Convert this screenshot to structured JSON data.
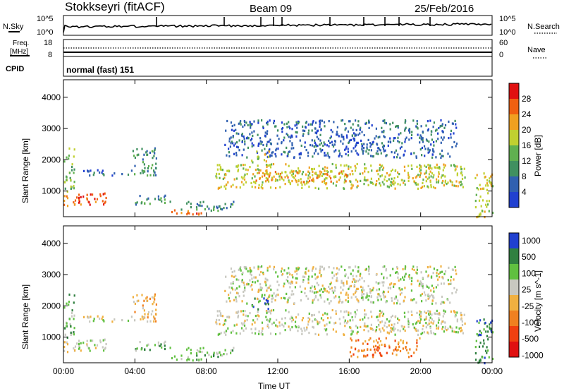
{
  "header": {
    "station": "Stokkseyri (fitACF)",
    "beam": "Beam 09",
    "date": "25/Feb/2016"
  },
  "nsky_panel": {
    "left_label": "N.Sky",
    "right_label": "N.Search",
    "left_ticks": [
      "10^5",
      "10^0"
    ],
    "right_ticks": [
      "10^5",
      "10^0"
    ]
  },
  "freq_panel": {
    "label_line1": "Freq.",
    "label_line2": "[MHz]",
    "right_label": "Nave",
    "left_ticks": [
      "18",
      "8"
    ],
    "right_ticks": [
      "60",
      "0"
    ]
  },
  "cpid": {
    "label": "CPID",
    "mode": "normal (fast) 151"
  },
  "colors": {
    "power": [
      "#2040d0",
      "#3060b0",
      "#409060",
      "#60b050",
      "#c0d030",
      "#f0a020",
      "#f06010",
      "#e01010"
    ],
    "velocity": [
      "#e01010",
      "#f04010",
      "#f08020",
      "#f0b040",
      "#c8c8c0",
      "#60c040",
      "#308040",
      "#2040d0"
    ]
  },
  "chart_data": [
    {
      "type": "heatmap",
      "name": "power",
      "ylabel": "Slant Range [km]",
      "xlabel": "Time UT",
      "x_ticks": [
        "00:00",
        "04:00",
        "08:00",
        "12:00",
        "16:00",
        "20:00",
        "00:00"
      ],
      "y_ticks": [
        "1000",
        "2000",
        "3000",
        "4000"
      ],
      "ylim": [
        180,
        4560
      ],
      "xlim_hours": [
        0,
        24
      ],
      "colorbar": {
        "label": "Power [dB]",
        "ticks": [
          "4",
          "8",
          "12",
          "16",
          "20",
          "24",
          "28"
        ]
      },
      "regions": [
        {
          "t0": 0.0,
          "t1": 2.5,
          "r0": 560,
          "r1": 980,
          "level": 6
        },
        {
          "t0": 0.0,
          "t1": 0.6,
          "r0": 1000,
          "r1": 2400,
          "level": 3
        },
        {
          "t0": 1.0,
          "t1": 3.8,
          "r0": 1520,
          "r1": 1700,
          "level": 1
        },
        {
          "t0": 3.8,
          "t1": 5.2,
          "r0": 1500,
          "r1": 2400,
          "level": 2
        },
        {
          "t0": 4.0,
          "t1": 6.0,
          "r0": 600,
          "r1": 900,
          "level": 2
        },
        {
          "t0": 5.8,
          "t1": 7.8,
          "r0": 250,
          "r1": 420,
          "level": 6
        },
        {
          "t0": 6.5,
          "t1": 9.5,
          "r0": 400,
          "r1": 700,
          "level": 2
        },
        {
          "t0": 8.5,
          "t1": 22.5,
          "r0": 1100,
          "r1": 1900,
          "level": 4
        },
        {
          "t0": 10.5,
          "t1": 16.0,
          "r0": 1300,
          "r1": 1700,
          "level": 5
        },
        {
          "t0": 9.0,
          "t1": 22.0,
          "r0": 2100,
          "r1": 3300,
          "level": 1
        },
        {
          "t0": 10.5,
          "t1": 11.5,
          "r0": 1900,
          "r1": 2300,
          "level": 4
        },
        {
          "t0": 23.0,
          "t1": 24.0,
          "r0": 200,
          "r1": 1600,
          "level": 4
        }
      ]
    },
    {
      "type": "heatmap",
      "name": "velocity",
      "ylabel": "Slant Range [km]",
      "xlabel": "Time UT",
      "x_ticks": [
        "00:00",
        "04:00",
        "08:00",
        "12:00",
        "16:00",
        "20:00",
        "00:00"
      ],
      "y_ticks": [
        "1000",
        "2000",
        "3000",
        "4000"
      ],
      "ylim": [
        180,
        4560
      ],
      "xlim_hours": [
        0,
        24
      ],
      "colorbar": {
        "label": "Velocity [m s^-1]",
        "ticks": [
          "1000",
          "500",
          "100",
          "25",
          "-25",
          "-100",
          "-500",
          "-1000"
        ]
      },
      "regions": [
        {
          "t0": 0.0,
          "t1": 2.5,
          "r0": 560,
          "r1": 980,
          "level": 4
        },
        {
          "t0": 0.0,
          "t1": 0.6,
          "r0": 1000,
          "r1": 2400,
          "level": 5
        },
        {
          "t0": 1.0,
          "t1": 3.8,
          "r0": 1520,
          "r1": 1700,
          "level": 4
        },
        {
          "t0": 3.8,
          "t1": 5.2,
          "r0": 1500,
          "r1": 2400,
          "level": 3
        },
        {
          "t0": 4.0,
          "t1": 6.0,
          "r0": 600,
          "r1": 900,
          "level": 5
        },
        {
          "t0": 5.8,
          "t1": 7.8,
          "r0": 250,
          "r1": 420,
          "level": 5
        },
        {
          "t0": 6.5,
          "t1": 9.5,
          "r0": 400,
          "r1": 700,
          "level": 5
        },
        {
          "t0": 8.5,
          "t1": 22.5,
          "r0": 1100,
          "r1": 1900,
          "level": 4
        },
        {
          "t0": 9.0,
          "t1": 22.0,
          "r0": 2100,
          "r1": 3300,
          "level": 4
        },
        {
          "t0": 10.5,
          "t1": 11.5,
          "r0": 1900,
          "r1": 2300,
          "level": 6
        },
        {
          "t0": 16.0,
          "t1": 20.0,
          "r0": 400,
          "r1": 1000,
          "level": 2
        },
        {
          "t0": 23.0,
          "t1": 24.0,
          "r0": 200,
          "r1": 1600,
          "level": 6
        }
      ]
    }
  ]
}
